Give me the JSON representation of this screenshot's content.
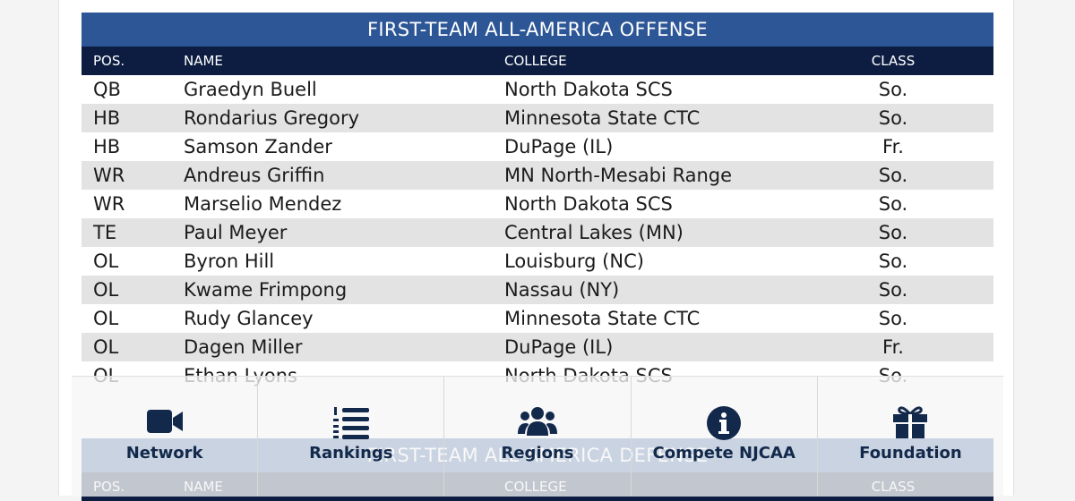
{
  "tables": [
    {
      "title": "FIRST-TEAM ALL-AMERICA OFFENSE",
      "columns": [
        "POS.",
        "NAME",
        "COLLEGE",
        "CLASS"
      ],
      "rows": [
        [
          "QB",
          "Graedyn Buell",
          "North Dakota SCS",
          "So."
        ],
        [
          "HB",
          "Rondarius Gregory",
          "Minnesota State CTC",
          "So."
        ],
        [
          "HB",
          "Samson Zander",
          "DuPage (IL)",
          "Fr."
        ],
        [
          "WR",
          "Andreus Griffin",
          "MN North-Mesabi Range",
          "So."
        ],
        [
          "WR",
          "Marselio Mendez",
          "North Dakota SCS",
          "So."
        ],
        [
          "TE",
          "Paul Meyer",
          "Central Lakes (MN)",
          "So."
        ],
        [
          "OL",
          "Byron Hill",
          "Louisburg (NC)",
          "So."
        ],
        [
          "OL",
          "Kwame Frimpong",
          "Nassau (NY)",
          "So."
        ],
        [
          "OL",
          "Rudy Glancey",
          "Minnesota State CTC",
          "So."
        ],
        [
          "OL",
          "Dagen Miller",
          "DuPage (IL)",
          "Fr."
        ],
        [
          "OL",
          "Ethan Lyons",
          "North Dakota SCS",
          "So."
        ]
      ]
    },
    {
      "title": "FIRST-TEAM ALL-AMERICA DEFENSE",
      "columns": [
        "POS.",
        "NAME",
        "COLLEGE",
        "CLASS"
      ],
      "rows": []
    }
  ],
  "nav": [
    "Network",
    "Rankings",
    "Regions",
    "Compete NJCAA",
    "Foundation"
  ]
}
